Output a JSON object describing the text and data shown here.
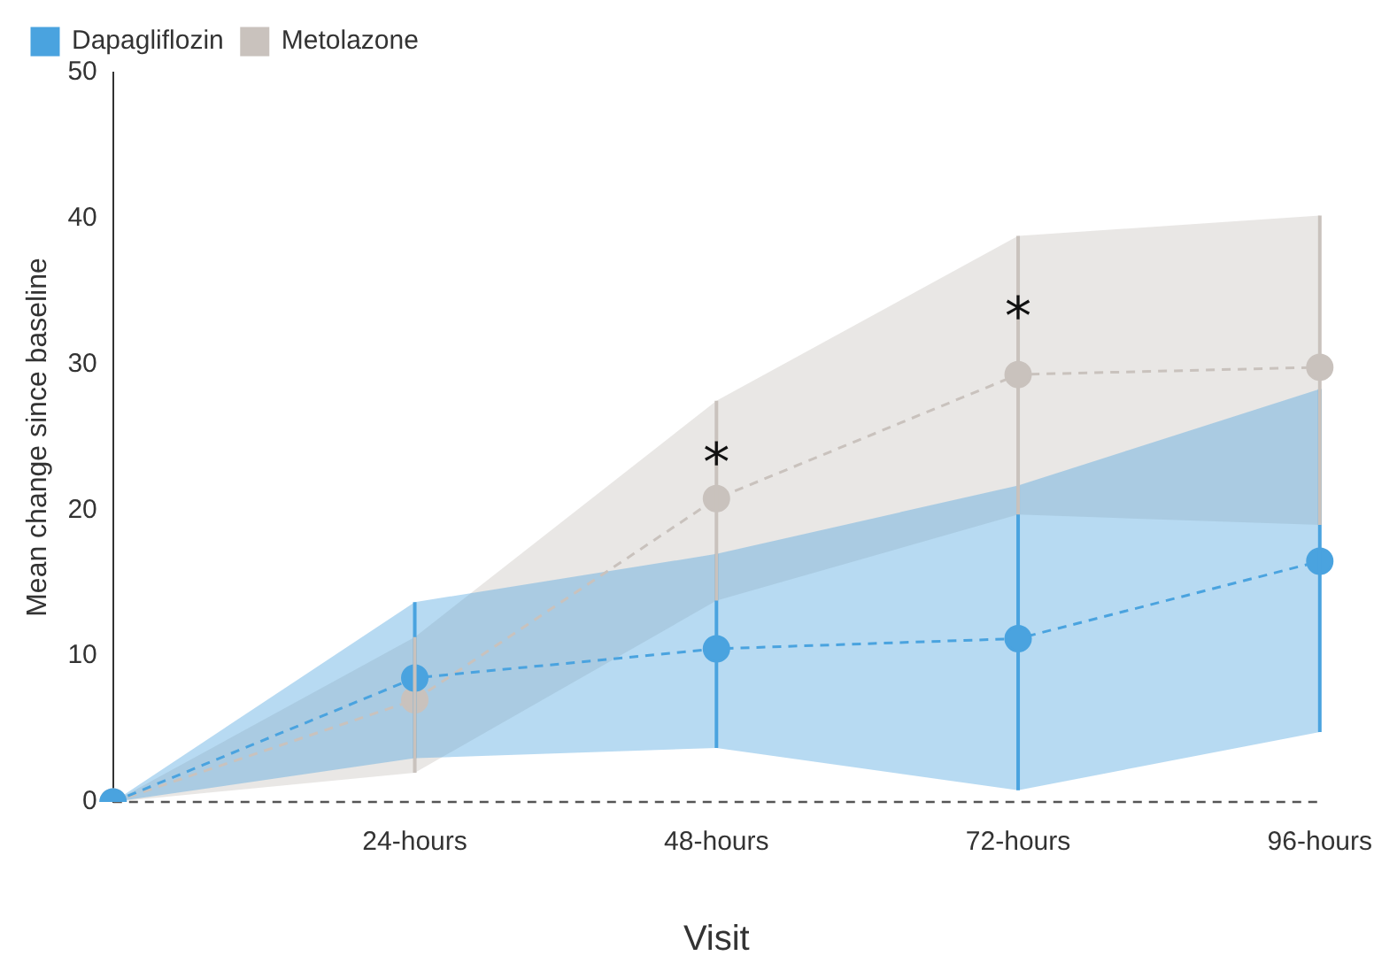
{
  "chart_data": {
    "type": "line",
    "xlabel": "Visit",
    "ylabel": "Mean change since baseline",
    "categories": [
      null,
      "24-hours",
      "48-hours",
      "72-hours",
      "96-hours"
    ],
    "series": [
      {
        "name": "Dapagliflozin",
        "color": "#4aa3df",
        "values": [
          0,
          8.5,
          10.5,
          11.2,
          16.5
        ],
        "errors": [
          null,
          [
            3,
            13.7
          ],
          [
            3.7,
            17
          ],
          [
            0.8,
            21.7
          ],
          [
            4.8,
            28.3
          ]
        ],
        "lower": [
          0,
          3,
          3.7,
          0.8,
          4.8
        ],
        "upper": [
          0,
          13.7,
          17,
          21.7,
          28.3
        ]
      },
      {
        "name": "Metolazone",
        "color": "#c9c2bd",
        "values": [
          0,
          7,
          20.8,
          29.3,
          29.8
        ],
        "errors": [
          null,
          [
            2,
            11.3
          ],
          [
            13.8,
            27.5
          ],
          [
            19.7,
            38.8
          ],
          [
            19,
            40.2
          ]
        ],
        "lower": [
          0,
          2,
          13.8,
          19.7,
          19
        ],
        "upper": [
          0,
          11.3,
          27.5,
          38.8,
          40.2
        ]
      }
    ],
    "ylim": [
      0,
      50
    ],
    "yticks": [
      0,
      10,
      20,
      30,
      40,
      50
    ],
    "grid": false,
    "legend": "top left",
    "marker": "circle",
    "line_style": "dashed",
    "ref_lines": [
      {
        "axis": "y",
        "value": 0,
        "line_style": "dashed",
        "color": "#555555"
      }
    ],
    "annotations": [
      {
        "text": "*",
        "x": "48-hours",
        "y": 23
      },
      {
        "text": "*",
        "x": "72-hours",
        "y": 33
      }
    ]
  }
}
